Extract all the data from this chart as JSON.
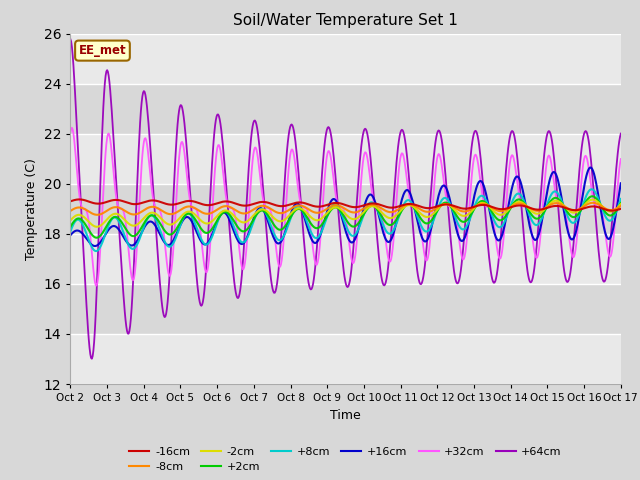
{
  "title": "Soil/Water Temperature Set 1",
  "xlabel": "Time",
  "ylabel": "Temperature (C)",
  "ylim": [
    12,
    26
  ],
  "yticks": [
    12,
    14,
    16,
    18,
    20,
    22,
    24,
    26
  ],
  "xlim": [
    0,
    15
  ],
  "xtick_labels": [
    "Oct 2",
    "Oct 3",
    "Oct 4",
    "Oct 5",
    "Oct 6",
    "Oct 7",
    "Oct 8",
    "Oct 9",
    "Oct 10",
    "Oct 11",
    "Oct 12",
    "Oct 13",
    "Oct 14",
    "Oct 15",
    "Oct 16",
    "Oct 17"
  ],
  "xtick_positions": [
    0,
    1,
    2,
    3,
    4,
    5,
    6,
    7,
    8,
    9,
    10,
    11,
    12,
    13,
    14,
    15
  ],
  "annotation_text": "EE_met",
  "annotation_bg": "#ffffcc",
  "annotation_border": "#996600",
  "bg_color": "#d8d8d8",
  "plot_bg": "#d8d8d8",
  "grid_color": "#ffffff",
  "series_colors": {
    "-16cm": "#cc0000",
    "-8cm": "#ff8800",
    "-2cm": "#dddd00",
    "+2cm": "#00cc00",
    "+8cm": "#00cccc",
    "+16cm": "#0000cc",
    "+32cm": "#ff55ff",
    "+64cm": "#9900bb"
  },
  "legend_order": [
    "-16cm",
    "-8cm",
    "-2cm",
    "+2cm",
    "+8cm",
    "+16cm",
    "+32cm",
    "+64cm"
  ],
  "figsize": [
    6.4,
    4.8
  ],
  "dpi": 100
}
